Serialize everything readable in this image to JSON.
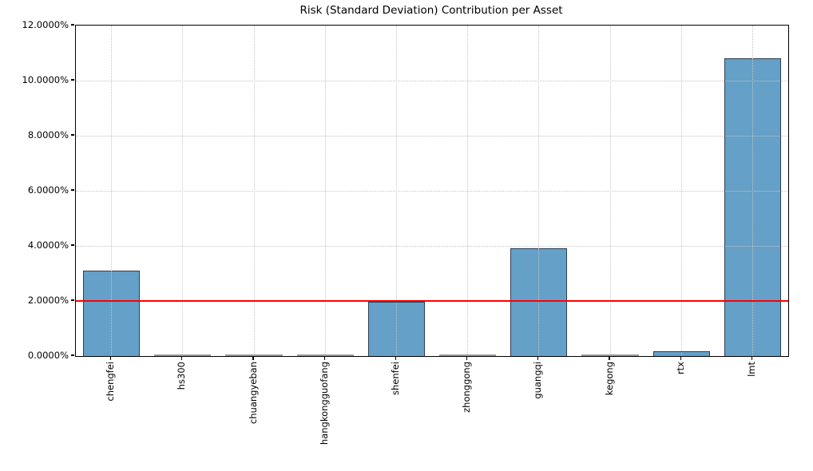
{
  "title": "Risk (Standard Deviation) Contribution per Asset",
  "chart_data": {
    "type": "bar",
    "title": "Risk (Standard Deviation) Contribution per Asset",
    "categories": [
      "chengfei",
      "hs300",
      "chuangyeban",
      "hangkongguofang",
      "shenfei",
      "zhonggong",
      "guangqi",
      "kegong",
      "rtx",
      "lmt"
    ],
    "values": [
      3.1,
      0.0,
      0.0,
      0.0,
      1.96,
      0.0,
      3.91,
      0.0,
      0.16,
      10.81
    ],
    "xlabel": "",
    "ylabel": "",
    "ylim": [
      0,
      12
    ],
    "yticks": [
      0,
      2,
      4,
      6,
      8,
      10,
      12
    ],
    "ytick_labels": [
      "0.0000%",
      "2.0000%",
      "4.0000%",
      "6.0000%",
      "8.0000%",
      "10.0000%",
      "12.0000%"
    ],
    "grid": true,
    "grid_style": "dotted",
    "legend": "none",
    "reference_line": {
      "value": 2.0,
      "color": "#ff0000"
    },
    "colors": {
      "bar_fill": "#64A0C8",
      "bar_edge": "#2d3e50",
      "grid": "#c6c6c6",
      "axis": "#000000",
      "zero_bar": "#9a9a9a"
    }
  }
}
